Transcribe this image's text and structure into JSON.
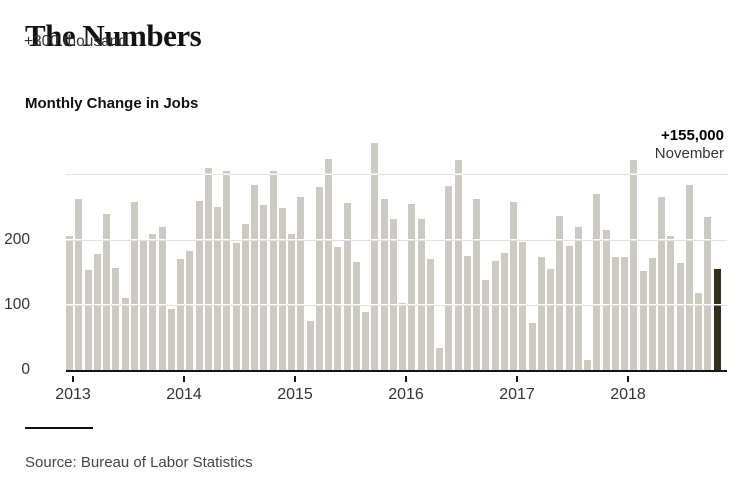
{
  "header": {
    "title": "The Numbers",
    "subtitle": "Monthly Change in Jobs"
  },
  "annotation": {
    "value": "+155,000",
    "label": "November"
  },
  "axis": {
    "top_label": "+300 thousand",
    "y_ticks": [
      "200",
      "100",
      "0"
    ],
    "x_ticks": [
      "2013",
      "2014",
      "2015",
      "2016",
      "2017",
      "2018"
    ]
  },
  "source": "Source: Bureau of Labor Statistics",
  "colors": {
    "bar": "#cdcac3",
    "highlight_bar": "#342e1f",
    "gridline": "#e3e1dd",
    "axis_line": "#151515",
    "text_dark": "#121212",
    "text_gray": "#333333",
    "source_gray": "#454545"
  },
  "chart_data": {
    "type": "bar",
    "title": "Monthly Change in Jobs",
    "unit": "thousands of jobs",
    "start_month": "January 2013",
    "end_month": "November 2018",
    "x_tick_labels": [
      "2013",
      "2014",
      "2015",
      "2016",
      "2017",
      "2018"
    ],
    "ylim": [
      0,
      350
    ],
    "gridlines_at": [
      100,
      200,
      300
    ],
    "grid": true,
    "legend": "none",
    "highlight_index": 70,
    "highlight_value": 155,
    "highlight_label": "+155,000 November",
    "values": [
      205,
      262,
      153,
      178,
      240,
      157,
      110,
      257,
      199,
      208,
      219,
      93,
      171,
      182,
      259,
      310,
      250,
      306,
      195,
      224,
      283,
      253,
      306,
      248,
      208,
      266,
      75,
      281,
      323,
      189,
      256,
      165,
      89,
      348,
      263,
      232,
      103,
      254,
      231,
      171,
      34,
      282,
      322,
      175,
      262,
      138,
      167,
      179,
      257,
      197,
      72,
      173,
      155,
      236,
      190,
      220,
      16,
      270,
      215,
      173,
      173,
      322,
      152,
      172,
      266,
      206,
      164,
      284,
      118,
      235,
      155
    ]
  }
}
